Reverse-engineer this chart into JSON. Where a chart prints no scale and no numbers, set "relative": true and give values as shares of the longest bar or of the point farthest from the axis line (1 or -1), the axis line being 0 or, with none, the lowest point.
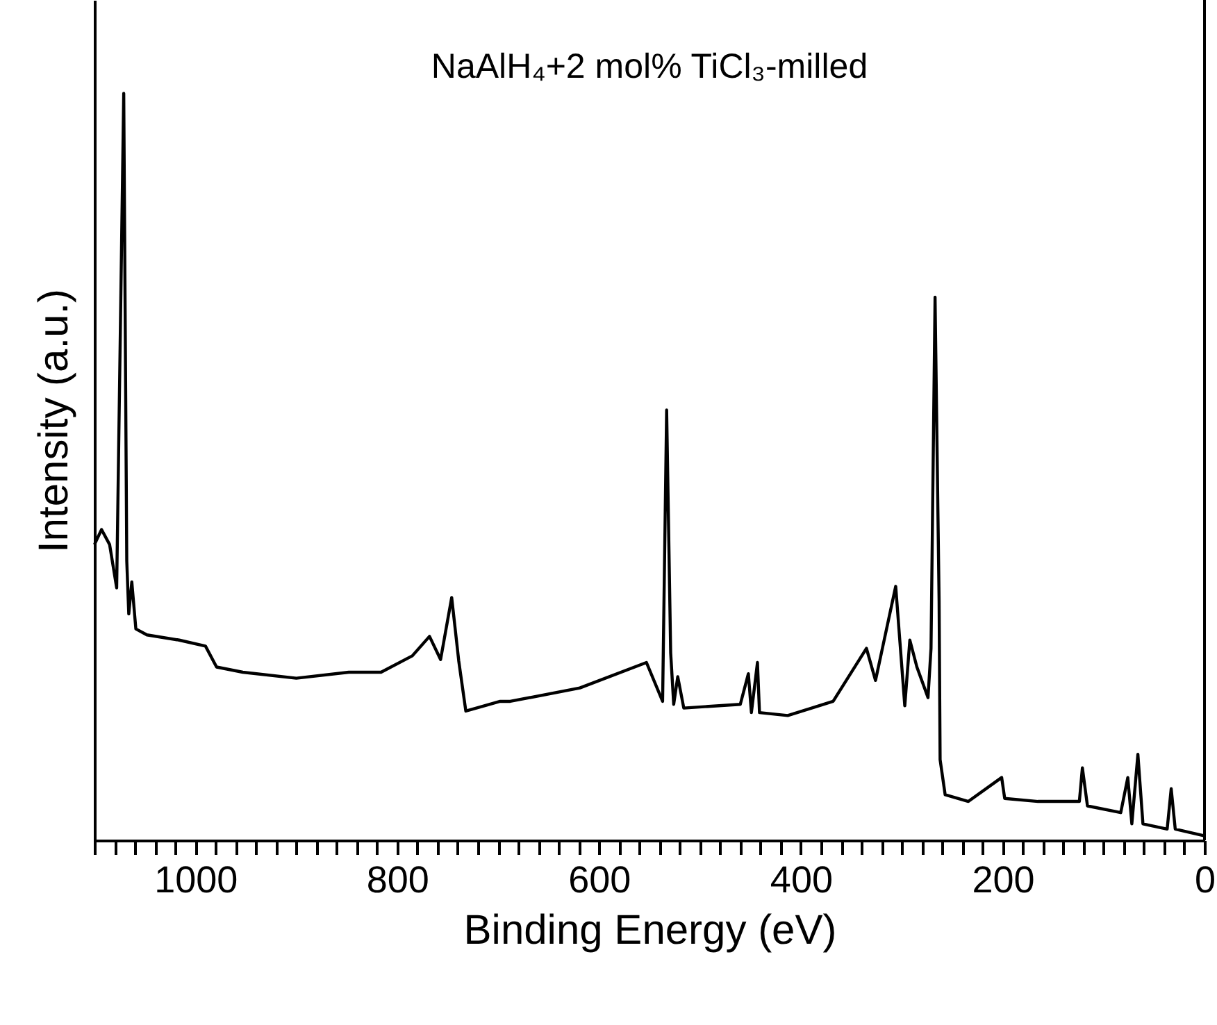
{
  "chart_data": {
    "type": "line",
    "title": "NaAlH₄+2 mol% TiCl₃-milled",
    "xlabel": "Binding Energy (eV)",
    "ylabel": "Intensity (a.u.)",
    "relative": true,
    "grid": false,
    "marker": "none",
    "line_style": "solid",
    "xlim": [
      1100,
      0
    ],
    "xticks": [
      {
        "value": 1100,
        "label": null
      },
      {
        "value": 1080,
        "label": null
      },
      {
        "value": 1060,
        "label": null
      },
      {
        "value": 1040,
        "label": null
      },
      {
        "value": 1020,
        "label": null
      },
      1000,
      {
        "value": 980,
        "label": null
      },
      {
        "value": 960,
        "label": null
      },
      {
        "value": 940,
        "label": null
      },
      {
        "value": 920,
        "label": null
      },
      {
        "value": 900,
        "label": null
      },
      {
        "value": 880,
        "label": null
      },
      {
        "value": 860,
        "label": null
      },
      {
        "value": 840,
        "label": null
      },
      {
        "value": 820,
        "label": null
      },
      800,
      {
        "value": 780,
        "label": null
      },
      {
        "value": 760,
        "label": null
      },
      {
        "value": 740,
        "label": null
      },
      {
        "value": 720,
        "label": null
      },
      {
        "value": 700,
        "label": null
      },
      {
        "value": 680,
        "label": null
      },
      {
        "value": 660,
        "label": null
      },
      {
        "value": 640,
        "label": null
      },
      {
        "value": 620,
        "label": null
      },
      600,
      {
        "value": 580,
        "label": null
      },
      {
        "value": 560,
        "label": null
      },
      {
        "value": 540,
        "label": null
      },
      {
        "value": 520,
        "label": null
      },
      {
        "value": 500,
        "label": null
      },
      {
        "value": 480,
        "label": null
      },
      {
        "value": 460,
        "label": null
      },
      {
        "value": 440,
        "label": null
      },
      {
        "value": 420,
        "label": null
      },
      400,
      {
        "value": 380,
        "label": null
      },
      {
        "value": 360,
        "label": null
      },
      {
        "value": 340,
        "label": null
      },
      {
        "value": 320,
        "label": null
      },
      {
        "value": 300,
        "label": null
      },
      {
        "value": 280,
        "label": null
      },
      {
        "value": 260,
        "label": null
      },
      {
        "value": 240,
        "label": null
      },
      {
        "value": 220,
        "label": null
      },
      200,
      {
        "value": 180,
        "label": null
      },
      {
        "value": 160,
        "label": null
      },
      {
        "value": 140,
        "label": null
      },
      {
        "value": 120,
        "label": null
      },
      {
        "value": 100,
        "label": null
      },
      {
        "value": 80,
        "label": null
      },
      {
        "value": 60,
        "label": null
      },
      {
        "value": 40,
        "label": null
      },
      {
        "value": 20,
        "label": null
      },
      0
    ],
    "series": [
      {
        "color": "#000000",
        "x": [
          1100,
          1093,
          1085,
          1078,
          1071,
          1068,
          1066,
          1063,
          1059,
          1048,
          1016,
          990,
          979,
          953,
          900,
          848,
          816,
          785,
          768,
          757,
          746,
          739,
          732,
          698,
          688,
          619,
          553,
          537,
          533,
          529,
          526,
          522,
          516,
          460,
          452,
          449,
          443,
          441,
          413,
          368,
          335,
          326,
          306,
          297,
          292,
          285,
          274,
          271,
          267,
          263,
          262,
          257,
          234,
          201,
          198,
          165,
          124,
          121,
          116,
          83,
          76,
          72,
          66,
          61,
          37,
          33,
          29,
          0
        ],
        "values": [
          0.396,
          0.416,
          0.396,
          0.338,
          1.0,
          0.374,
          0.303,
          0.346,
          0.283,
          0.275,
          0.268,
          0.26,
          0.232,
          0.225,
          0.217,
          0.225,
          0.225,
          0.247,
          0.273,
          0.242,
          0.325,
          0.24,
          0.173,
          0.186,
          0.186,
          0.204,
          0.238,
          0.186,
          0.576,
          0.251,
          0.182,
          0.219,
          0.177,
          0.182,
          0.223,
          0.171,
          0.238,
          0.171,
          0.167,
          0.186,
          0.257,
          0.214,
          0.34,
          0.18,
          0.268,
          0.232,
          0.191,
          0.257,
          0.727,
          0.32,
          0.108,
          0.061,
          0.052,
          0.084,
          0.056,
          0.052,
          0.052,
          0.097,
          0.046,
          0.037,
          0.084,
          0.022,
          0.115,
          0.022,
          0.015,
          0.069,
          0.015,
          0.006
        ]
      }
    ]
  }
}
